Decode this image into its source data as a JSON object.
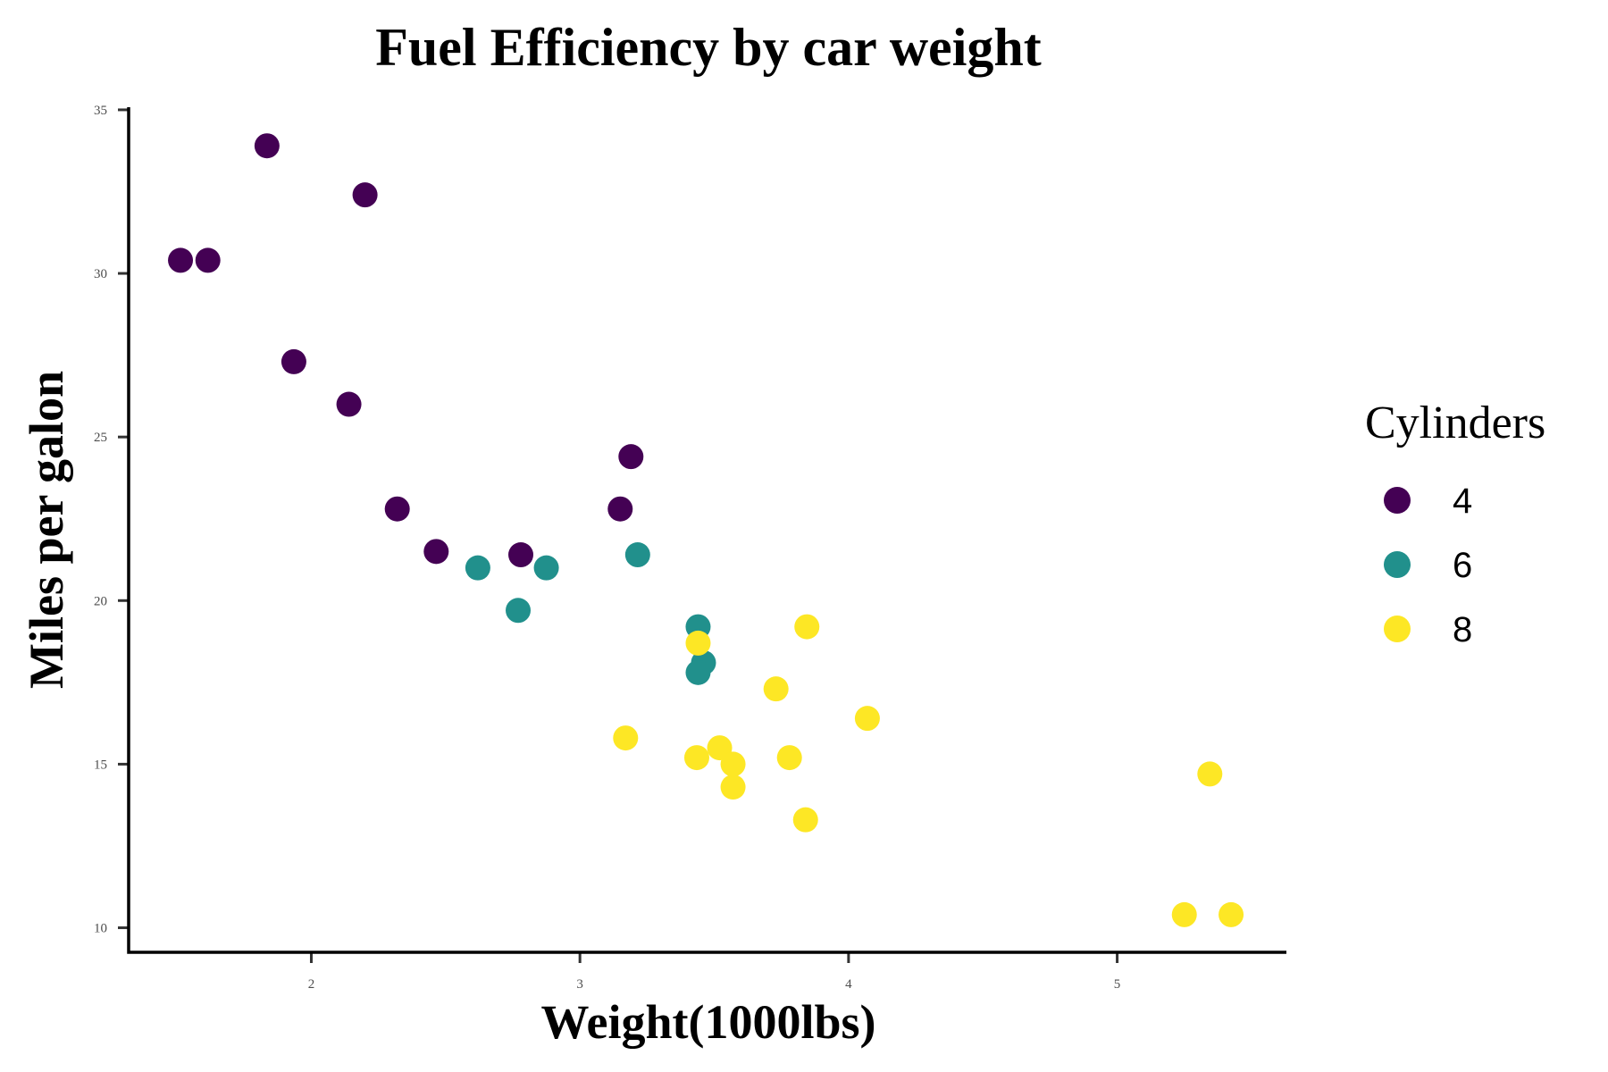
{
  "chart_data": {
    "type": "scatter",
    "title": "Fuel Efficiency by car weight",
    "xlabel": "Weight(1000lbs)",
    "ylabel": "Miles per galon",
    "xlim": [
      1.32,
      5.63
    ],
    "ylim": [
      9.25,
      35.08
    ],
    "x_ticks": [
      2,
      3,
      4,
      5
    ],
    "y_ticks": [
      10,
      15,
      20,
      25,
      30,
      35
    ],
    "grid": false,
    "legend": {
      "title": "Cylinders",
      "position": "right"
    },
    "series": [
      {
        "name": "4",
        "color": "#440154",
        "points": [
          {
            "x": 2.32,
            "y": 22.8
          },
          {
            "x": 3.19,
            "y": 24.4
          },
          {
            "x": 3.15,
            "y": 22.8
          },
          {
            "x": 2.2,
            "y": 32.4
          },
          {
            "x": 1.615,
            "y": 30.4
          },
          {
            "x": 1.835,
            "y": 33.9
          },
          {
            "x": 2.465,
            "y": 21.5
          },
          {
            "x": 1.935,
            "y": 27.3
          },
          {
            "x": 2.14,
            "y": 26.0
          },
          {
            "x": 1.513,
            "y": 30.4
          },
          {
            "x": 2.78,
            "y": 21.4
          }
        ]
      },
      {
        "name": "6",
        "color": "#21908C",
        "points": [
          {
            "x": 2.62,
            "y": 21.0
          },
          {
            "x": 2.875,
            "y": 21.0
          },
          {
            "x": 3.215,
            "y": 21.4
          },
          {
            "x": 3.44,
            "y": 19.2
          },
          {
            "x": 3.46,
            "y": 18.1
          },
          {
            "x": 3.44,
            "y": 17.8
          },
          {
            "x": 2.77,
            "y": 19.7
          }
        ]
      },
      {
        "name": "8",
        "color": "#FDE725",
        "points": [
          {
            "x": 3.44,
            "y": 18.7
          },
          {
            "x": 3.57,
            "y": 14.3
          },
          {
            "x": 4.07,
            "y": 16.4
          },
          {
            "x": 3.73,
            "y": 17.3
          },
          {
            "x": 3.78,
            "y": 15.2
          },
          {
            "x": 5.25,
            "y": 10.4
          },
          {
            "x": 5.424,
            "y": 10.4
          },
          {
            "x": 5.345,
            "y": 14.7
          },
          {
            "x": 3.52,
            "y": 15.5
          },
          {
            "x": 3.435,
            "y": 15.2
          },
          {
            "x": 3.84,
            "y": 13.3
          },
          {
            "x": 3.845,
            "y": 19.2
          },
          {
            "x": 3.17,
            "y": 15.8
          },
          {
            "x": 3.57,
            "y": 15.0
          }
        ]
      }
    ]
  }
}
